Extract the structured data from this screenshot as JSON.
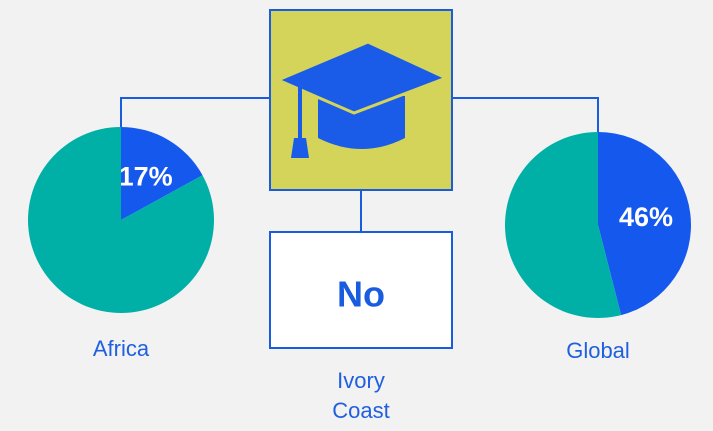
{
  "center": {
    "title": "No",
    "caption": "Ivory Coast"
  },
  "chart_data": [
    {
      "type": "pie",
      "title": "Africa",
      "values": [
        17,
        83
      ],
      "value_labels": [
        "17%",
        null
      ],
      "colors": [
        "#1558ee",
        "#00b0a6"
      ]
    },
    {
      "type": "pie",
      "title": "Global",
      "values": [
        46,
        54
      ],
      "value_labels": [
        "46%",
        null
      ],
      "colors": [
        "#1558ee",
        "#00b0a6"
      ]
    }
  ]
}
